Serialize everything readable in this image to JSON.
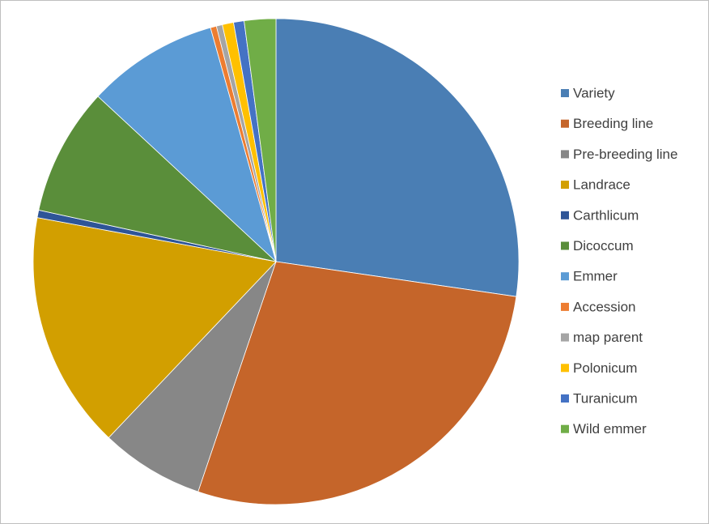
{
  "chart_data": {
    "type": "pie",
    "categories": [
      "Variety",
      "Breeding line",
      "Pre-breeding line",
      "Landrace",
      "Carthlicum",
      "Dicoccum",
      "Emmer",
      "Accession",
      "map parent",
      "Polonicum",
      "Turanicum",
      "Wild emmer"
    ],
    "values": [
      27.3,
      27.9,
      6.9,
      15.8,
      0.5,
      8.5,
      8.75,
      0.4,
      0.4,
      0.75,
      0.7,
      2.1
    ],
    "colors": [
      "#4a7eb4",
      "#c5652a",
      "#878787",
      "#d29f00",
      "#2e5597",
      "#5a8e3a",
      "#5b9bd5",
      "#ed7d31",
      "#a5a5a5",
      "#ffc000",
      "#4472c4",
      "#70ad47"
    ],
    "legend": "right"
  }
}
